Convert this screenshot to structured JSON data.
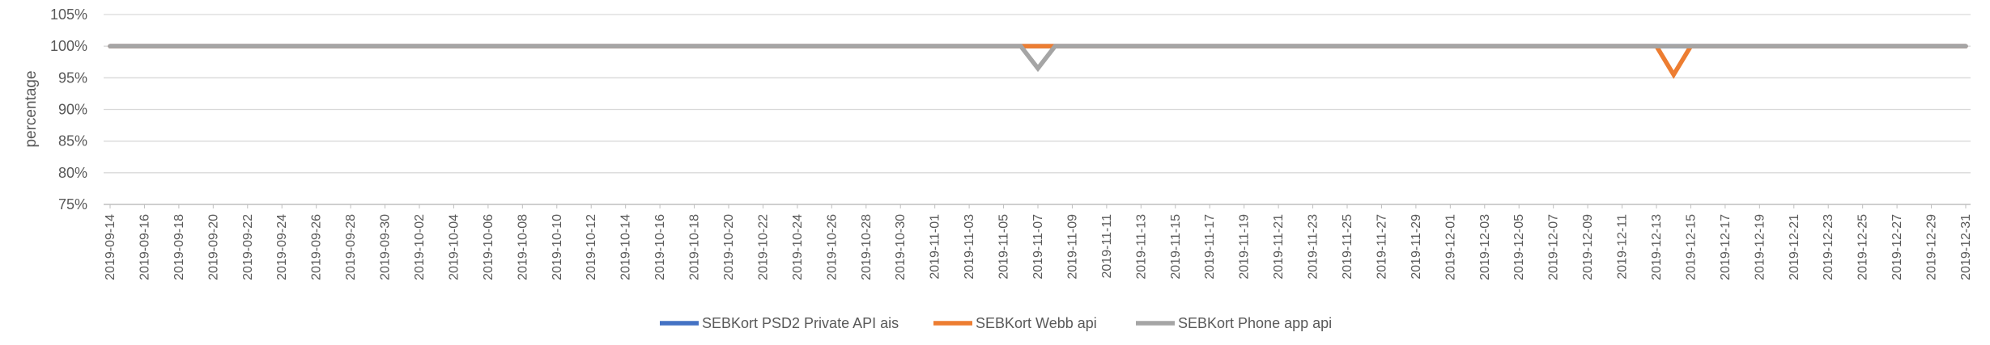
{
  "chart_data": {
    "type": "line",
    "title": "",
    "xlabel": "",
    "ylabel": "percentage",
    "ylim": [
      75,
      105
    ],
    "y_ticks": [
      "75%",
      "80%",
      "85%",
      "90%",
      "95%",
      "100%",
      "105%"
    ],
    "y_tick_values": [
      75,
      80,
      85,
      90,
      95,
      100,
      105
    ],
    "x_range": [
      "2019-09-14",
      "2019-12-31"
    ],
    "x_tick_labels": [
      "2019-09-14",
      "2019-09-16",
      "2019-09-18",
      "2019-09-20",
      "2019-09-22",
      "2019-09-24",
      "2019-09-26",
      "2019-09-28",
      "2019-09-30",
      "2019-10-02",
      "2019-10-04",
      "2019-10-06",
      "2019-10-08",
      "2019-10-10",
      "2019-10-12",
      "2019-10-14",
      "2019-10-16",
      "2019-10-18",
      "2019-10-20",
      "2019-10-22",
      "2019-10-24",
      "2019-10-26",
      "2019-10-28",
      "2019-10-30",
      "2019-11-01",
      "2019-11-03",
      "2019-11-05",
      "2019-11-07",
      "2019-11-09",
      "2019-11-11",
      "2019-11-13",
      "2019-11-15",
      "2019-11-17",
      "2019-11-19",
      "2019-11-21",
      "2019-11-23",
      "2019-11-25",
      "2019-11-27",
      "2019-11-29",
      "2019-12-01",
      "2019-12-03",
      "2019-12-05",
      "2019-12-07",
      "2019-12-09",
      "2019-12-11",
      "2019-12-13",
      "2019-12-15",
      "2019-12-17",
      "2019-12-19",
      "2019-12-21",
      "2019-12-23",
      "2019-12-25",
      "2019-12-27",
      "2019-12-29",
      "2019-12-31"
    ],
    "grid": true,
    "legend_position": "bottom",
    "series": [
      {
        "name": "SEBKort PSD2 Private API ais",
        "color": "#4472C4",
        "default_value": 100,
        "points": [
          {
            "x": "2019-09-14",
            "y": 100
          },
          {
            "x": "2019-12-31",
            "y": 100
          }
        ]
      },
      {
        "name": "SEBKort Webb api",
        "color": "#ED7D31",
        "default_value": 100,
        "points": [
          {
            "x": "2019-12-14",
            "y": 95.5
          }
        ]
      },
      {
        "name": "SEBKort Phone app api",
        "color": "#A5A5A5",
        "default_value": 100,
        "points": [
          {
            "x": "2019-11-07",
            "y": 96.5
          }
        ]
      }
    ]
  }
}
